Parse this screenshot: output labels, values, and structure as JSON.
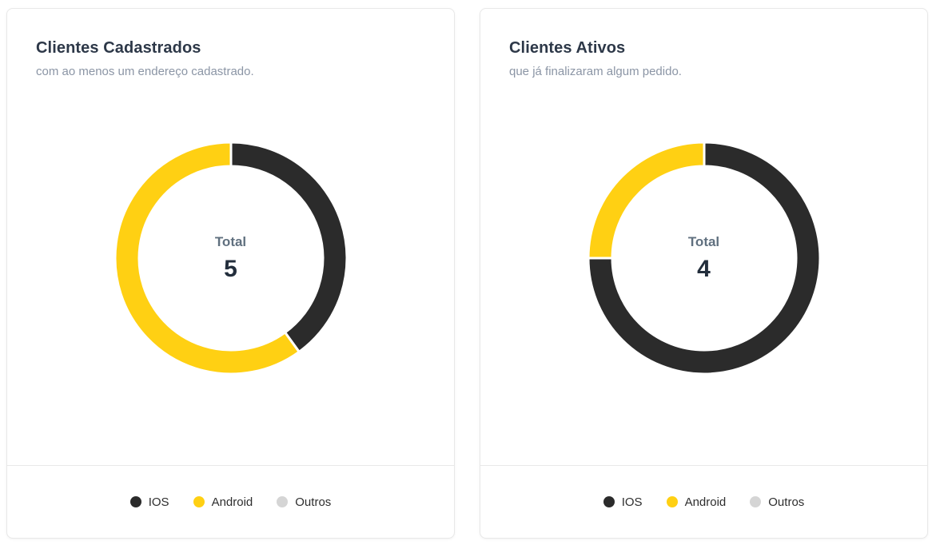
{
  "page": {
    "background": "#ffffff"
  },
  "colors": {
    "ios": "#2b2b2b",
    "android": "#ffd013",
    "outros": "#d5d5d5",
    "card_border": "#e8e8e8",
    "title": "#2d3848",
    "subtitle": "#8b95a5",
    "total_label": "#60707f",
    "total_value": "#232e3c"
  },
  "legend": {
    "items": [
      {
        "label": "IOS",
        "color": "#2b2b2b"
      },
      {
        "label": "Android",
        "color": "#ffd013"
      },
      {
        "label": "Outros",
        "color": "#d5d5d5"
      }
    ]
  },
  "cards": [
    {
      "title": "Clientes Cadastrados",
      "subtitle": "com ao menos um endereço cadastrado.",
      "total_label": "Total",
      "total_value": "5"
    },
    {
      "title": "Clientes Ativos",
      "subtitle": "que já finalizaram algum pedido.",
      "total_label": "Total",
      "total_value": "4"
    }
  ],
  "chart_data": [
    {
      "type": "pie",
      "variant": "donut",
      "title": "Clientes Cadastrados",
      "subtitle": "com ao menos um endereço cadastrado.",
      "categories": [
        "IOS",
        "Android",
        "Outros"
      ],
      "values": [
        2,
        3,
        0
      ],
      "total": 5,
      "center_label": "Total",
      "center_value": 5,
      "colors": [
        "#2b2b2b",
        "#ffd013",
        "#d5d5d5"
      ],
      "start_angle_deg": -90,
      "direction": "clockwise",
      "legend_position": "bottom",
      "legend_labels": [
        "IOS",
        "Android",
        "Outros"
      ]
    },
    {
      "type": "pie",
      "variant": "donut",
      "title": "Clientes Ativos",
      "subtitle": "que já finalizaram algum pedido.",
      "categories": [
        "IOS",
        "Android",
        "Outros"
      ],
      "values": [
        3,
        1,
        0
      ],
      "total": 4,
      "center_label": "Total",
      "center_value": 4,
      "colors": [
        "#2b2b2b",
        "#ffd013",
        "#d5d5d5"
      ],
      "start_angle_deg": -90,
      "direction": "clockwise",
      "legend_position": "bottom",
      "legend_labels": [
        "IOS",
        "Android",
        "Outros"
      ]
    }
  ]
}
